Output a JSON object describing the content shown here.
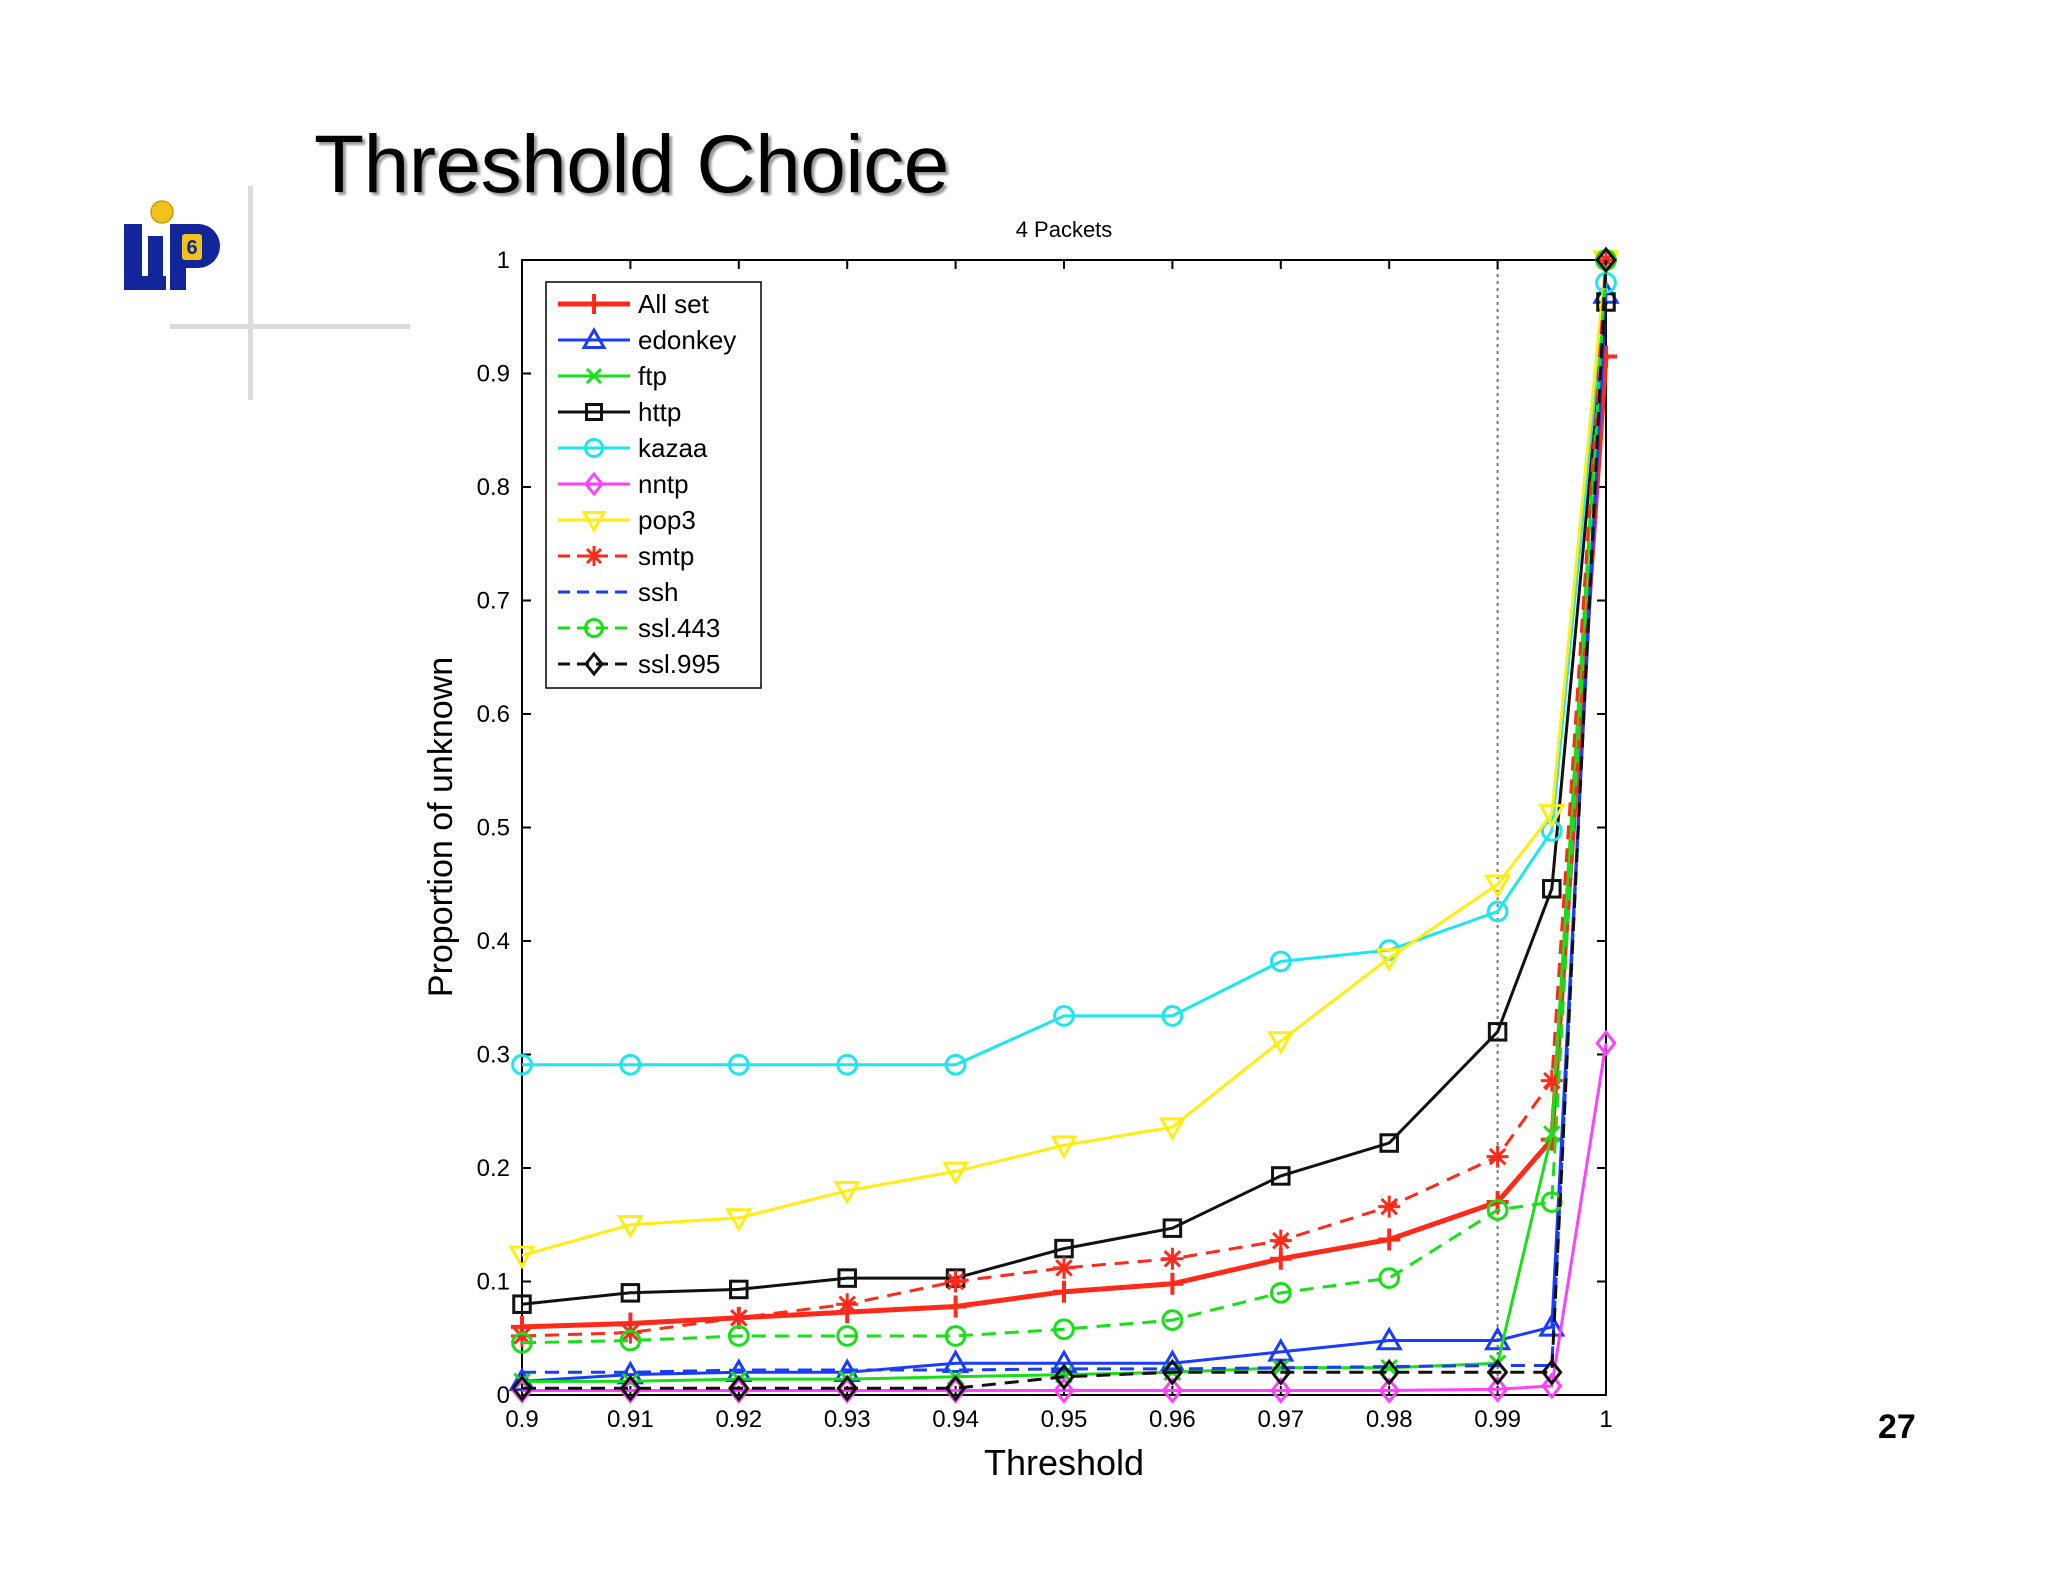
{
  "slide": {
    "title": "Threshold Choice",
    "page_number": "27",
    "logo_text": "LIP6"
  },
  "colors": {
    "title_shadow": "#9a9a9a",
    "logo_blue": "#12259a",
    "logo_yellow": "#f2c21b"
  },
  "chart_data": {
    "type": "line",
    "title": "4 Packets",
    "xlabel": "Threshold",
    "ylabel": "Proportion of unknown",
    "xlim": [
      0.9,
      1.0
    ],
    "ylim": [
      0,
      1
    ],
    "xticks": [
      "0.9",
      "0.91",
      "0.92",
      "0.93",
      "0.94",
      "0.95",
      "0.96",
      "0.97",
      "0.98",
      "0.99",
      "1"
    ],
    "yticks": [
      "0",
      "0.1",
      "0.2",
      "0.3",
      "0.4",
      "0.5",
      "0.6",
      "0.7",
      "0.8",
      "0.9",
      "1"
    ],
    "x": [
      0.9,
      0.91,
      0.92,
      0.93,
      0.94,
      0.95,
      0.96,
      0.97,
      0.98,
      0.99,
      0.995,
      1.0
    ],
    "reference_line_x": 0.99,
    "grid": false,
    "legend_position": "top-left",
    "series": [
      {
        "name": "All set",
        "color": "#ff2a1a",
        "dash": "solid",
        "marker": "plus",
        "width": 5,
        "values": [
          0.06,
          0.063,
          0.068,
          0.073,
          0.078,
          0.091,
          0.098,
          0.12,
          0.137,
          0.17,
          0.225,
          0.915
        ]
      },
      {
        "name": "edonkey",
        "color": "#1a3cff",
        "dash": "solid",
        "marker": "triangle-up",
        "width": 3,
        "values": [
          0.012,
          0.018,
          0.02,
          0.02,
          0.028,
          0.028,
          0.028,
          0.038,
          0.048,
          0.048,
          0.06,
          0.97
        ]
      },
      {
        "name": "ftp",
        "color": "#18e018",
        "dash": "solid",
        "marker": "x",
        "width": 3,
        "values": [
          0.012,
          0.012,
          0.014,
          0.014,
          0.016,
          0.018,
          0.02,
          0.024,
          0.024,
          0.028,
          0.23,
          1.0
        ]
      },
      {
        "name": "http",
        "color": "#111111",
        "dash": "solid",
        "marker": "square",
        "width": 3,
        "values": [
          0.08,
          0.09,
          0.093,
          0.103,
          0.103,
          0.129,
          0.147,
          0.193,
          0.222,
          0.32,
          0.446,
          0.963
        ]
      },
      {
        "name": "kazaa",
        "color": "#1ee6f0",
        "dash": "solid",
        "marker": "circle",
        "width": 3,
        "values": [
          0.291,
          0.291,
          0.291,
          0.291,
          0.291,
          0.334,
          0.334,
          0.382,
          0.392,
          0.426,
          0.497,
          0.98
        ]
      },
      {
        "name": "nntp",
        "color": "#ff40ff",
        "dash": "solid",
        "marker": "diamond",
        "width": 3,
        "values": [
          0.004,
          0.004,
          0.004,
          0.004,
          0.004,
          0.004,
          0.004,
          0.004,
          0.004,
          0.005,
          0.008,
          0.31
        ]
      },
      {
        "name": "pop3",
        "color": "#ffee10",
        "dash": "solid",
        "marker": "triangle-down",
        "width": 3,
        "values": [
          0.123,
          0.15,
          0.156,
          0.18,
          0.197,
          0.22,
          0.236,
          0.312,
          0.385,
          0.45,
          0.512,
          1.0
        ]
      },
      {
        "name": "smtp",
        "color": "#ff2a1a",
        "dash": "dashed",
        "marker": "star",
        "width": 3,
        "values": [
          0.052,
          0.055,
          0.068,
          0.08,
          0.1,
          0.112,
          0.12,
          0.136,
          0.166,
          0.21,
          0.277,
          1.0
        ]
      },
      {
        "name": "ssh",
        "color": "#1a3cff",
        "dash": "dashed",
        "marker": "none",
        "width": 3,
        "values": [
          0.02,
          0.02,
          0.022,
          0.022,
          0.022,
          0.023,
          0.023,
          0.024,
          0.025,
          0.026,
          0.026,
          1.0
        ]
      },
      {
        "name": "ssl.443",
        "color": "#18e018",
        "dash": "dashed",
        "marker": "circle",
        "width": 3,
        "values": [
          0.046,
          0.048,
          0.052,
          0.052,
          0.052,
          0.058,
          0.066,
          0.09,
          0.103,
          0.163,
          0.17,
          1.0
        ]
      },
      {
        "name": "ssl.995",
        "color": "#111111",
        "dash": "dashed",
        "marker": "diamond",
        "width": 3,
        "values": [
          0.006,
          0.006,
          0.006,
          0.006,
          0.006,
          0.016,
          0.02,
          0.02,
          0.02,
          0.02,
          0.02,
          1.0
        ]
      }
    ]
  }
}
